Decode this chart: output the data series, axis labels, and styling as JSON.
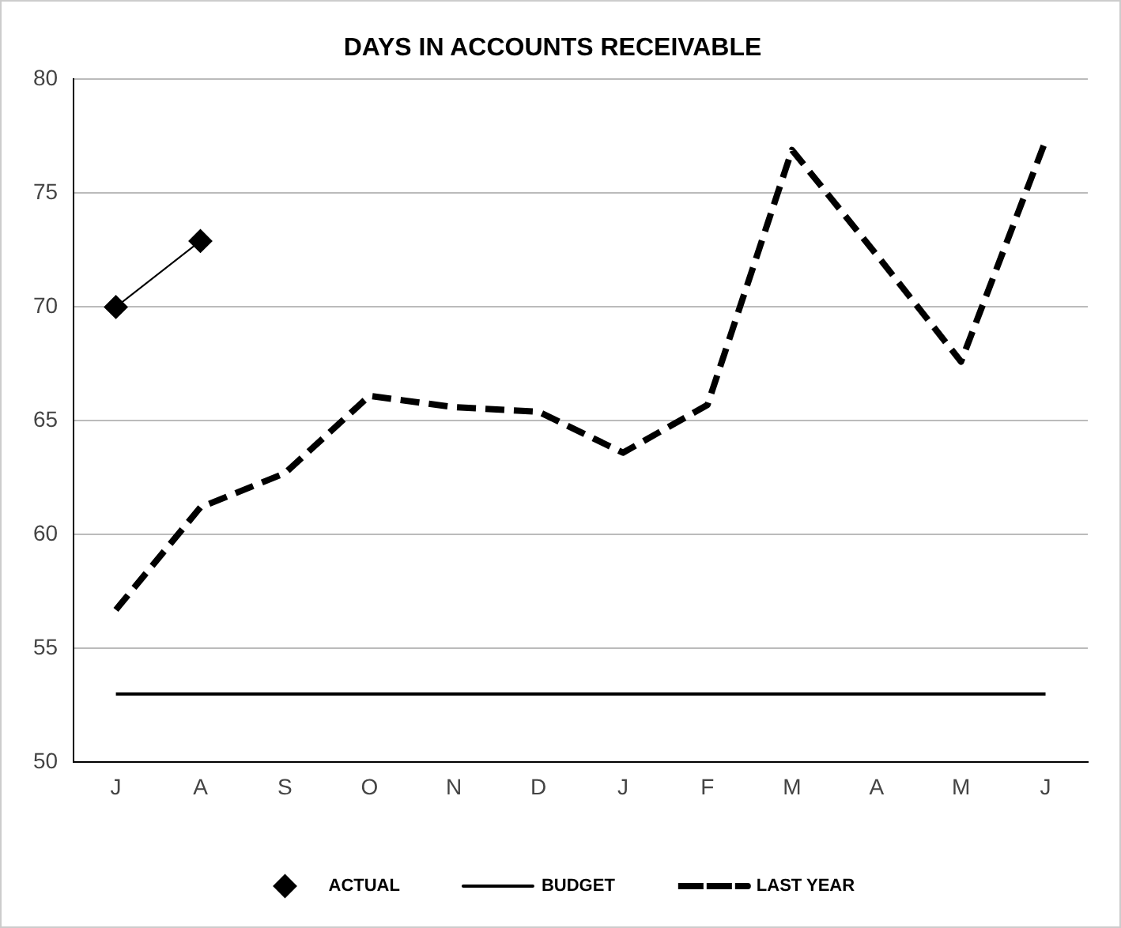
{
  "chart_data": {
    "type": "line",
    "title": "DAYS IN ACCOUNTS RECEIVABLE",
    "categories": [
      "J",
      "A",
      "S",
      "O",
      "N",
      "D",
      "J",
      "F",
      "M",
      "A",
      "M",
      "J"
    ],
    "series": [
      {
        "name": "ACTUAL",
        "color": "#000000",
        "values": [
          70.0,
          72.9,
          null,
          null,
          null,
          null,
          null,
          null,
          null,
          null,
          null,
          null
        ],
        "marker": "diamond",
        "line_style": "solid"
      },
      {
        "name": "BUDGET",
        "color": "#000000",
        "values": [
          53,
          53,
          53,
          53,
          53,
          53,
          53,
          53,
          53,
          53,
          53,
          53
        ],
        "marker": "none",
        "line_style": "solid"
      },
      {
        "name": "LAST YEAR",
        "color": "#000000",
        "values": [
          56.7,
          61.2,
          62.7,
          66.1,
          65.6,
          65.4,
          63.6,
          65.7,
          76.9,
          72.3,
          67.6,
          77.3
        ],
        "marker": "none",
        "line_style": "dashed"
      }
    ],
    "ylim": [
      50,
      80
    ],
    "yticks": [
      50,
      55,
      60,
      65,
      70,
      75,
      80
    ],
    "grid": "y",
    "legend": "bottom"
  }
}
